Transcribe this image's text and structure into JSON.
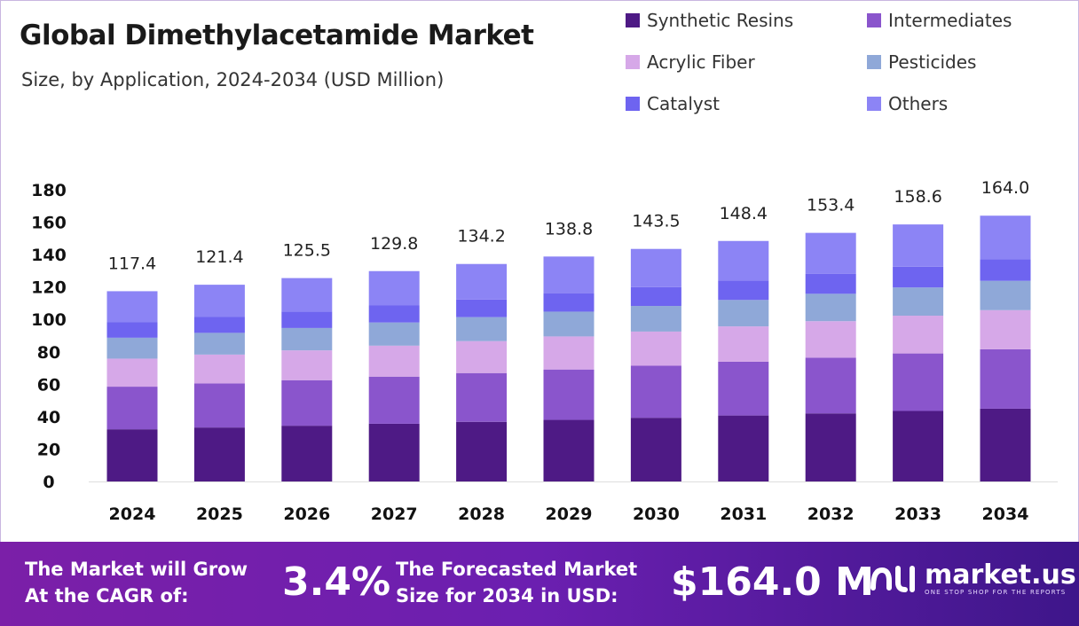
{
  "header": {
    "title": "Global Dimethylacetamide Market",
    "subtitle": "Size, by Application, 2024-2034 (USD Million)"
  },
  "chart_data": {
    "type": "bar",
    "stacked": true,
    "categories": [
      "2024",
      "2025",
      "2026",
      "2027",
      "2028",
      "2029",
      "2030",
      "2031",
      "2032",
      "2033",
      "2034"
    ],
    "totals": [
      "117.4",
      "121.4",
      "125.5",
      "129.8",
      "134.2",
      "138.8",
      "143.5",
      "148.4",
      "153.4",
      "158.6",
      "164.0"
    ],
    "series": [
      {
        "name": "Synthetic Resins",
        "color": "#4e1a85",
        "values": [
          32.2,
          33.3,
          34.4,
          35.6,
          36.8,
          38.0,
          39.3,
          40.7,
          42.0,
          43.5,
          44.9
        ]
      },
      {
        "name": "Intermediates",
        "color": "#8a55cc",
        "values": [
          26.3,
          27.2,
          28.1,
          29.1,
          30.1,
          31.1,
          32.1,
          33.2,
          34.4,
          35.5,
          36.7
        ]
      },
      {
        "name": "Acrylic Fiber",
        "color": "#d6a8e8",
        "values": [
          17.3,
          17.8,
          18.4,
          19.1,
          19.7,
          20.4,
          21.1,
          21.8,
          22.5,
          23.3,
          24.1
        ]
      },
      {
        "name": "Pesticides",
        "color": "#8fa8d8",
        "values": [
          12.9,
          13.4,
          13.8,
          14.3,
          14.8,
          15.3,
          15.8,
          16.3,
          16.9,
          17.4,
          18.1
        ]
      },
      {
        "name": "Catalyst",
        "color": "#6e64f0",
        "values": [
          9.5,
          9.8,
          10.2,
          10.5,
          10.9,
          11.2,
          11.6,
          12.0,
          12.4,
          12.8,
          13.3
        ]
      },
      {
        "name": "Others",
        "color": "#8c84f5",
        "values": [
          19.2,
          19.9,
          20.6,
          21.2,
          21.9,
          22.8,
          23.6,
          24.4,
          25.2,
          26.1,
          26.9
        ]
      }
    ],
    "yticks": [
      "0",
      "20",
      "40",
      "60",
      "80",
      "100",
      "120",
      "140",
      "160",
      "180"
    ],
    "ylim": [
      0,
      180
    ],
    "grid": false,
    "legend_position": "top-right"
  },
  "banner": {
    "cagr_label": "The Market will Grow At the CAGR of:",
    "cagr_value": "3.4%",
    "forecast_label": "The Forecasted Market Size for 2034 in USD:",
    "forecast_value": "$164.0 M",
    "logo_name": "market.us",
    "logo_tagline": "ONE STOP SHOP FOR THE REPORTS"
  }
}
